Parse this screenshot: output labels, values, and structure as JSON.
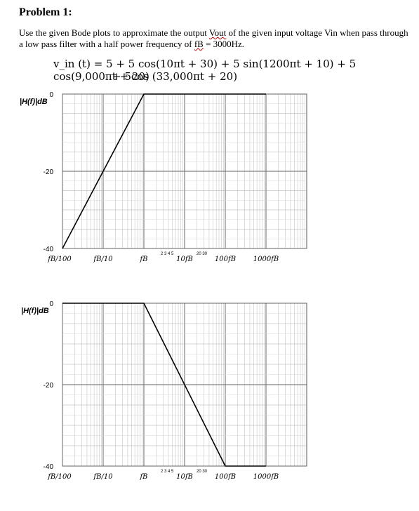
{
  "problem": {
    "title": "Problem 1:",
    "statement_part1": "Use the given Bode plots to approximate the output",
    "vout": "Vout",
    "statement_part2": "of the given input voltage",
    "vin": "Vin",
    "statement_part3": "when pass through a low pass filter with a half power frequency of",
    "fb": "fB",
    "statement_part4": "= 3000Hz.",
    "equation_line1": "v_in (t) = 5 + 5 cos(10πt + 30) + 5 sin(1200πt + 10) + 5 cos(9,000πt + 20)",
    "equation_line2": "+ 5cos (33,000πt + 20)"
  },
  "chart_data": [
    {
      "type": "line",
      "ylabel": "|H(f)|dB",
      "y_ticks": [
        "0",
        "-20",
        "-40"
      ],
      "x_tick_labels": [
        "fB/100",
        "fB/10",
        "fB",
        "10fB",
        "100fB",
        "1000fB"
      ],
      "minor_tick_labels": {
        "left": "2 3 4 5",
        "right": "20 30"
      },
      "x_log_decades": [
        -2,
        -1,
        0,
        1,
        2,
        3
      ],
      "series": [
        {
          "x": [
            0.01,
            1,
            1000
          ],
          "y": [
            -40,
            0,
            0
          ]
        }
      ],
      "ylim": [
        -40,
        0
      ],
      "grid": true
    },
    {
      "type": "line",
      "ylabel": "|H(f)|dB",
      "y_ticks": [
        "0",
        "-20",
        "-40"
      ],
      "x_tick_labels": [
        "fB/100",
        "fB/10",
        "fB",
        "10fB",
        "100fB",
        "1000fB"
      ],
      "minor_tick_labels": {
        "left": "2 3 4 5",
        "right": "20 30"
      },
      "x_log_decades": [
        -2,
        -1,
        0,
        1,
        2,
        3
      ],
      "series": [
        {
          "x": [
            0.01,
            1,
            100,
            1000
          ],
          "y": [
            0,
            0,
            -40,
            -40
          ]
        }
      ],
      "ylim": [
        -40,
        0
      ],
      "grid": true
    }
  ]
}
